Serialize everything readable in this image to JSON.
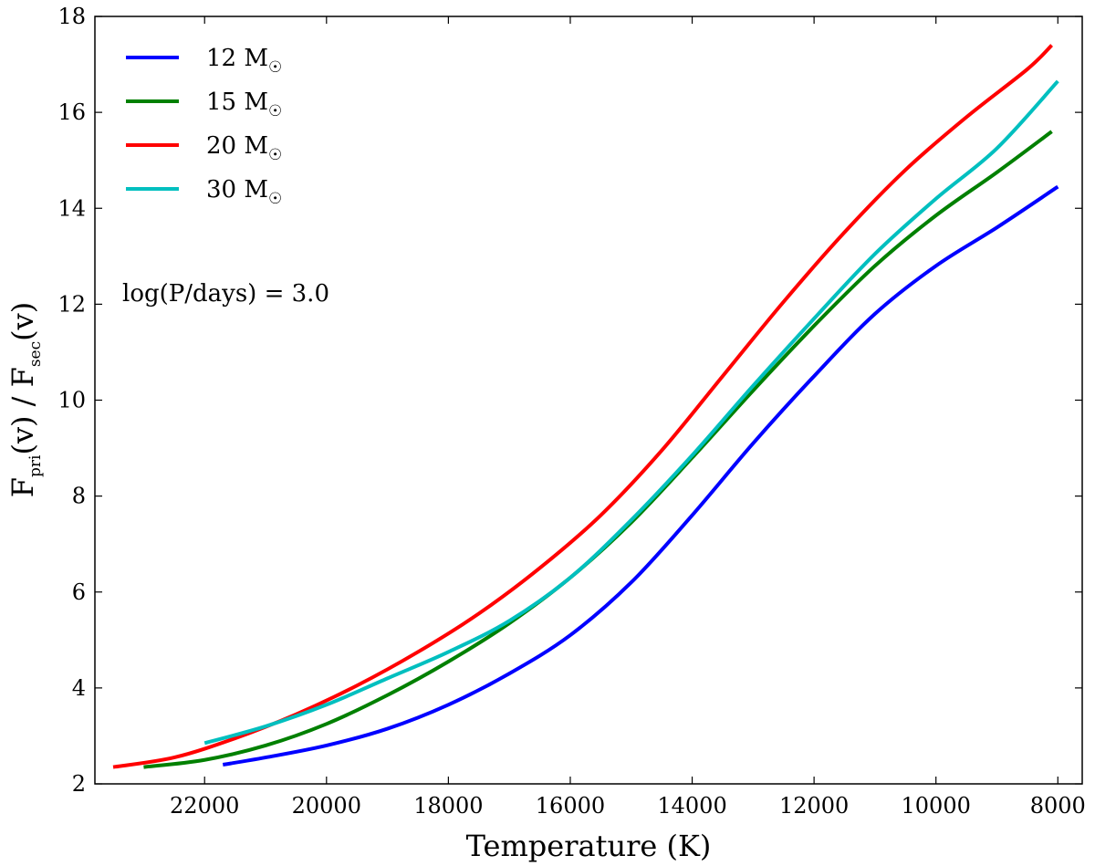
{
  "chart_data": {
    "type": "line",
    "title": "",
    "xlabel": "Temperature (K)",
    "ylabel": "F_pri(v) / F_sec(v)",
    "ylabel_parts": {
      "f1": "F",
      "sub1": "pri",
      "mid": "(v) / F",
      "sub2": "sec",
      "end": "(v)"
    },
    "xlim": [
      23800,
      7600
    ],
    "ylim": [
      2,
      18
    ],
    "x_inverted": true,
    "xticks": [
      22000,
      20000,
      18000,
      16000,
      14000,
      12000,
      10000,
      8000
    ],
    "yticks": [
      2,
      4,
      6,
      8,
      10,
      12,
      14,
      16,
      18
    ],
    "annotation": "log(P/days) = 3.0",
    "legend_position": "upper-left",
    "series": [
      {
        "name": "12 M☉",
        "label_number": "12 M",
        "color": "#0000ff",
        "x": [
          21700,
          21000,
          20000,
          19000,
          18000,
          17000,
          16000,
          15000,
          14000,
          13000,
          12000,
          11000,
          10000,
          9000,
          8000
        ],
        "y": [
          2.4,
          2.55,
          2.8,
          3.15,
          3.65,
          4.3,
          5.1,
          6.2,
          7.6,
          9.1,
          10.5,
          11.8,
          12.8,
          13.6,
          14.45
        ]
      },
      {
        "name": "15 M☉",
        "label_number": "15 M",
        "color": "#008000",
        "x": [
          23000,
          22000,
          21000,
          20000,
          19000,
          18000,
          17000,
          16000,
          15000,
          14000,
          13000,
          12000,
          11000,
          10000,
          9000,
          8100
        ],
        "y": [
          2.35,
          2.5,
          2.8,
          3.25,
          3.85,
          4.55,
          5.35,
          6.3,
          7.45,
          8.8,
          10.2,
          11.55,
          12.8,
          13.85,
          14.75,
          15.6
        ]
      },
      {
        "name": "20 M☉",
        "label_number": "20 M",
        "color": "#ff0000",
        "x": [
          23500,
          22500,
          21500,
          20500,
          19500,
          18500,
          17500,
          16500,
          15500,
          14500,
          13500,
          12500,
          11500,
          10500,
          9500,
          8500,
          8100
        ],
        "y": [
          2.35,
          2.55,
          2.95,
          3.45,
          4.05,
          4.75,
          5.55,
          6.5,
          7.6,
          8.95,
          10.5,
          12.05,
          13.5,
          14.8,
          15.9,
          16.9,
          17.4
        ]
      },
      {
        "name": "30 M☉",
        "label_number": "30 M",
        "color": "#00bfbf",
        "x": [
          22000,
          21000,
          20000,
          19000,
          18000,
          17000,
          16000,
          15000,
          14000,
          13000,
          12000,
          11000,
          10000,
          9000,
          8000
        ],
        "y": [
          2.85,
          3.2,
          3.65,
          4.2,
          4.75,
          5.4,
          6.3,
          7.5,
          8.85,
          10.3,
          11.7,
          13.05,
          14.2,
          15.25,
          16.65
        ]
      }
    ]
  }
}
